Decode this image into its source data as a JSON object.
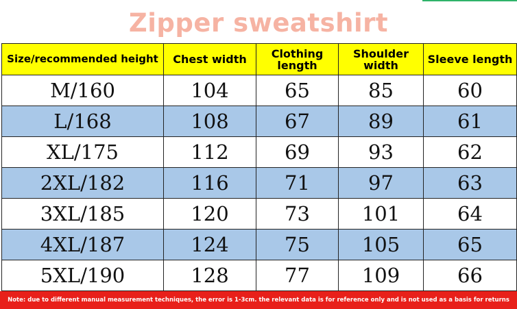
{
  "title": "Zipper sweatshirt",
  "colors": {
    "title": "#f6b3a3",
    "header_background": "#ffff00",
    "stripe_blue": "#a9c8e8",
    "note_background": "#e8201a",
    "top_line": "#2fb36a"
  },
  "table": {
    "headers": [
      "Size/recommended height",
      "Chest width",
      "Clothing length",
      "Shoulder width",
      "Sleeve length"
    ],
    "rows": [
      [
        "M/160",
        "104",
        "65",
        "85",
        "60"
      ],
      [
        "L/168",
        "108",
        "67",
        "89",
        "61"
      ],
      [
        "XL/175",
        "112",
        "69",
        "93",
        "62"
      ],
      [
        "2XL/182",
        "116",
        "71",
        "97",
        "63"
      ],
      [
        "3XL/185",
        "120",
        "73",
        "101",
        "64"
      ],
      [
        "4XL/187",
        "124",
        "75",
        "105",
        "65"
      ],
      [
        "5XL/190",
        "128",
        "77",
        "109",
        "66"
      ]
    ]
  },
  "note": "Note: due to different manual measurement techniques, the error is 1-3cm. the relevant data is for reference only and is not used as a basis for returns"
}
